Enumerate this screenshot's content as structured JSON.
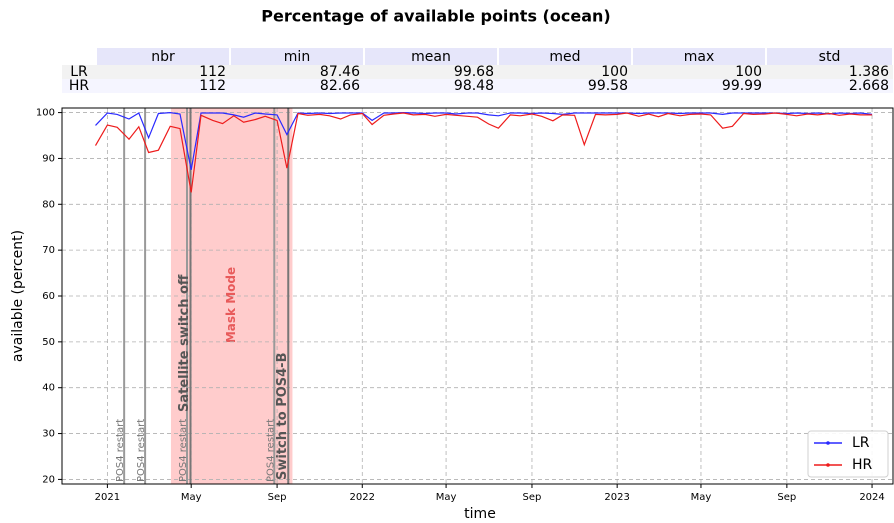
{
  "chart_data": {
    "type": "line",
    "title": "Percentage of available points (ocean)",
    "xlabel": "time",
    "ylabel": "available (percent)",
    "table": {
      "columns": [
        "nbr",
        "min",
        "mean",
        "med",
        "max",
        "std"
      ],
      "rows": [
        {
          "name": "LR",
          "cells": [
            112,
            87.46,
            99.68,
            100,
            100,
            1.386
          ]
        },
        {
          "name": "HR",
          "cells": [
            112,
            82.66,
            98.48,
            99.58,
            99.99,
            2.668
          ]
        }
      ]
    },
    "x": [
      "2020-12-15",
      "2021-01-01",
      "2021-01-15",
      "2021-02-01",
      "2021-02-15",
      "2021-03-01",
      "2021-03-15",
      "2021-04-01",
      "2021-04-15",
      "2021-05-01",
      "2021-05-15",
      "2021-06-01",
      "2021-06-15",
      "2021-07-01",
      "2021-07-15",
      "2021-08-01",
      "2021-08-15",
      "2021-09-01",
      "2021-09-15",
      "2021-10-01",
      "2021-10-15",
      "2021-11-01",
      "2021-11-15",
      "2021-12-01",
      "2021-12-15",
      "2022-01-01",
      "2022-01-15",
      "2022-02-01",
      "2022-02-15",
      "2022-03-01",
      "2022-03-15",
      "2022-04-01",
      "2022-04-15",
      "2022-05-01",
      "2022-05-15",
      "2022-06-01",
      "2022-06-15",
      "2022-07-01",
      "2022-07-15",
      "2022-08-01",
      "2022-08-15",
      "2022-09-01",
      "2022-09-15",
      "2022-10-01",
      "2022-10-15",
      "2022-11-01",
      "2022-11-15",
      "2022-12-01",
      "2022-12-15",
      "2023-01-01",
      "2023-01-15",
      "2023-02-01",
      "2023-02-15",
      "2023-03-01",
      "2023-03-15",
      "2023-04-01",
      "2023-04-15",
      "2023-05-01",
      "2023-05-15",
      "2023-06-01",
      "2023-06-15",
      "2023-07-01",
      "2023-07-15",
      "2023-08-01",
      "2023-08-15",
      "2023-09-01",
      "2023-09-15",
      "2023-10-01",
      "2023-10-15",
      "2023-11-01",
      "2023-11-15",
      "2023-12-01",
      "2023-12-15",
      "2024-01-01"
    ],
    "series": [
      {
        "name": "LR",
        "color": "#2a2aff",
        "values": [
          97.2,
          99.9,
          99.6,
          98.6,
          99.9,
          94.5,
          99.8,
          100,
          99.7,
          87.5,
          99.9,
          99.9,
          99.9,
          99.5,
          99.0,
          99.9,
          99.7,
          99.5,
          95.2,
          99.9,
          99.8,
          99.9,
          99.8,
          99.9,
          99.9,
          99.9,
          98.3,
          99.9,
          99.9,
          100,
          99.9,
          99.8,
          99.9,
          99.9,
          99.7,
          99.9,
          99.9,
          99.5,
          99.3,
          99.9,
          99.9,
          99.8,
          99.9,
          99.8,
          99.6,
          99.9,
          99.9,
          99.9,
          99.9,
          99.9,
          99.9,
          99.8,
          99.9,
          99.9,
          99.9,
          99.8,
          99.9,
          99.9,
          99.9,
          99.6,
          99.9,
          99.9,
          99.9,
          99.9,
          99.9,
          99.8,
          99.9,
          99.8,
          99.9,
          99.7,
          99.9,
          99.8,
          99.9,
          99.6
        ]
      },
      {
        "name": "HR",
        "color": "#ee1c1c",
        "values": [
          92.8,
          97.3,
          96.8,
          94.2,
          96.9,
          91.3,
          91.8,
          97.0,
          96.5,
          82.6,
          99.4,
          98.3,
          97.6,
          99.3,
          97.9,
          98.5,
          99.2,
          98.3,
          87.9,
          99.8,
          99.4,
          99.6,
          99.3,
          98.6,
          99.5,
          99.8,
          97.4,
          99.4,
          99.7,
          99.9,
          99.5,
          99.6,
          99.2,
          99.6,
          99.4,
          99.2,
          99.0,
          97.5,
          96.6,
          99.5,
          99.3,
          99.7,
          99.2,
          98.2,
          99.5,
          99.4,
          93.0,
          99.6,
          99.5,
          99.6,
          99.9,
          99.2,
          99.7,
          99.1,
          99.8,
          99.3,
          99.6,
          99.7,
          99.5,
          96.6,
          97.0,
          99.8,
          99.6,
          99.7,
          99.9,
          99.6,
          99.3,
          99.7,
          99.5,
          99.8,
          99.4,
          99.7,
          99.5,
          99.5
        ]
      }
    ],
    "spans": [
      {
        "start": "2021-04-02",
        "end": "2021-09-23",
        "label": "Mask Mode",
        "color": "#ff9999"
      }
    ],
    "minor_events": [
      {
        "x": "2021-01-25",
        "label": "POS4 restart"
      },
      {
        "x": "2021-02-24",
        "label": "POS4 restart"
      },
      {
        "x": "2021-04-25",
        "label": "POS4 restart"
      },
      {
        "x": "2021-08-28",
        "label": "POS4 restart"
      }
    ],
    "major_events": [
      {
        "x": "2021-04-30",
        "label": "Satellite switch off"
      },
      {
        "x": "2021-09-17",
        "label": "Switch to POS4-B"
      }
    ],
    "xlim": [
      "2020-10-28",
      "2024-01-31"
    ],
    "xticks": [
      {
        "value": "2021-01-01",
        "label": "2021"
      },
      {
        "value": "2021-05-01",
        "label": "May"
      },
      {
        "value": "2021-09-01",
        "label": "Sep"
      },
      {
        "value": "2022-01-01",
        "label": "2022"
      },
      {
        "value": "2022-05-01",
        "label": "May"
      },
      {
        "value": "2022-09-01",
        "label": "Sep"
      },
      {
        "value": "2023-01-01",
        "label": "2023"
      },
      {
        "value": "2023-05-01",
        "label": "May"
      },
      {
        "value": "2023-09-01",
        "label": "Sep"
      },
      {
        "value": "2024-01-01",
        "label": "2024"
      }
    ],
    "ylim": [
      19,
      101
    ],
    "yticks": [
      20,
      30,
      40,
      50,
      60,
      70,
      80,
      90,
      100
    ],
    "grid": true,
    "legend": "lower right"
  }
}
